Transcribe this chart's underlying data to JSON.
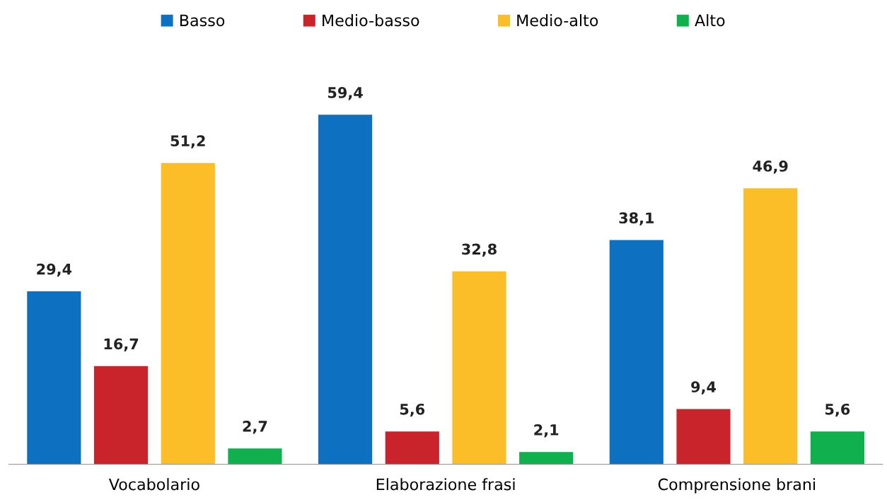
{
  "chart_data": {
    "type": "bar",
    "categories": [
      "Vocabolario",
      "Elaborazione frasi",
      "Comprensione brani"
    ],
    "series": [
      {
        "name": "Basso",
        "color": "#0e70c0",
        "values": [
          29.4,
          59.4,
          38.1
        ],
        "value_labels": [
          "29,4",
          "59,4",
          "38,1"
        ]
      },
      {
        "name": "Medio-basso",
        "color": "#c9242b",
        "values": [
          16.7,
          5.6,
          9.4
        ],
        "value_labels": [
          "16,7",
          "5,6",
          "9,4"
        ]
      },
      {
        "name": "Medio-alto",
        "color": "#fbbd28",
        "values": [
          51.2,
          32.8,
          46.9
        ],
        "value_labels": [
          "51,2",
          "32,8",
          "46,9"
        ]
      },
      {
        "name": "Alto",
        "color": "#11b04f",
        "values": [
          2.7,
          2.1,
          5.6
        ],
        "value_labels": [
          "2,7",
          "2,1",
          "5,6"
        ]
      }
    ],
    "legend": "top",
    "grid": false
  }
}
